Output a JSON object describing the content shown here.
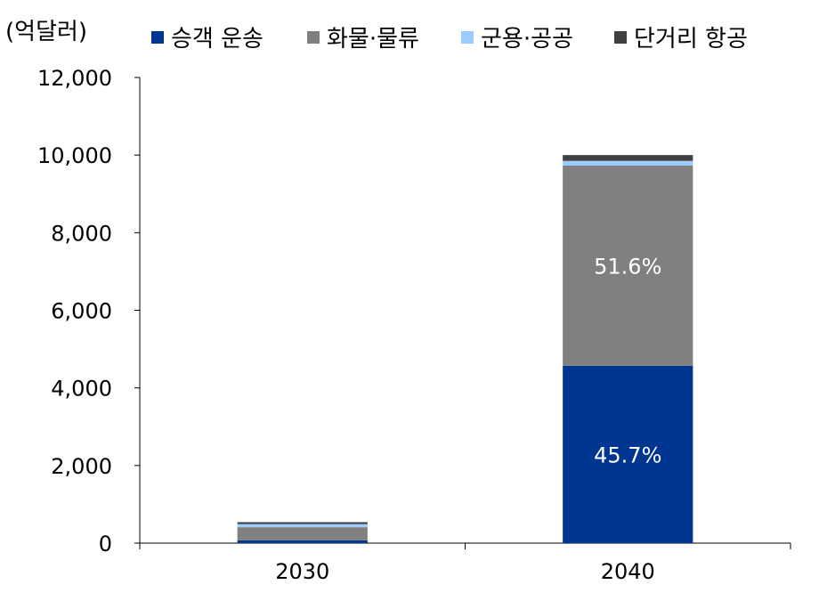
{
  "chart_data": {
    "type": "bar",
    "stacked": true,
    "unit_label": "(억달러)",
    "categories": [
      "2030",
      "2040"
    ],
    "series": [
      {
        "name": "승객 운송",
        "color": "#003591",
        "values": [
          70,
          4570
        ]
      },
      {
        "name": "화물·물류",
        "color": "#808080",
        "values": [
          340,
          5160
        ]
      },
      {
        "name": "군용·공공",
        "color": "#99ccff",
        "values": [
          80,
          120
        ]
      },
      {
        "name": "단거리 항공",
        "color": "#404040",
        "values": [
          50,
          150
        ]
      }
    ],
    "segment_labels": [
      {
        "category": "2040",
        "series": "승객 운송",
        "text": "45.7%"
      },
      {
        "category": "2040",
        "series": "화물·물류",
        "text": "51.6%"
      }
    ],
    "ylim": [
      0,
      12000
    ],
    "yticks": [
      0,
      2000,
      4000,
      6000,
      8000,
      10000,
      12000
    ],
    "ytick_labels": [
      "0",
      "2,000",
      "4,000",
      "6,000",
      "8,000",
      "10,000",
      "12,000"
    ],
    "legend_position": "top",
    "grid": false
  }
}
